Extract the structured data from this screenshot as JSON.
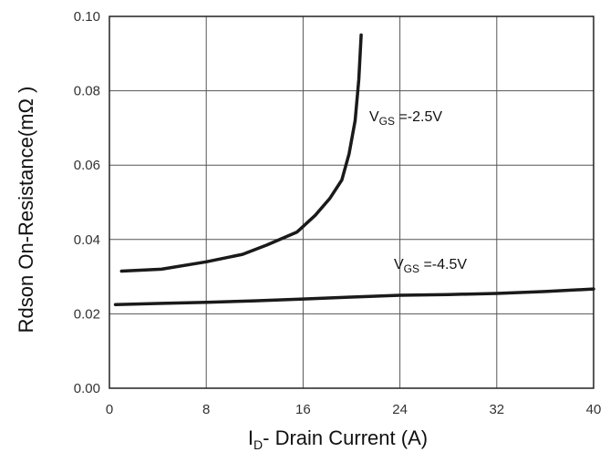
{
  "chart_data": {
    "type": "line",
    "title": "",
    "xlabel_prefix": "I",
    "xlabel_sub": "D",
    "xlabel_rest": "- Drain Current (A)",
    "ylabel": "Rdson On-Resistance(mΩ )",
    "xlim": [
      0,
      40
    ],
    "ylim": [
      0,
      0.1
    ],
    "x_ticks": [
      "0",
      "8",
      "16",
      "24",
      "32",
      "40"
    ],
    "y_ticks": [
      "0.00",
      "0.02",
      "0.04",
      "0.06",
      "0.08",
      "0.10"
    ],
    "x_tick_values": [
      0,
      8,
      16,
      24,
      32,
      40
    ],
    "y_tick_values": [
      0,
      0.02,
      0.04,
      0.06,
      0.08,
      0.1
    ],
    "grid": true,
    "series": [
      {
        "label_prefix": "V",
        "label_sub": "GS",
        "label_rest": " =-2.5V",
        "x": [
          1,
          4.3,
          8,
          11,
          13,
          15.5,
          17,
          18.2,
          19.2,
          19.8,
          20.3,
          20.6,
          20.8
        ],
        "y": [
          0.0315,
          0.032,
          0.034,
          0.036,
          0.0385,
          0.042,
          0.0465,
          0.051,
          0.056,
          0.063,
          0.072,
          0.083,
          0.095
        ]
      },
      {
        "label_prefix": "V",
        "label_sub": "GS",
        "label_rest": " =-4.5V",
        "x": [
          0.5,
          4,
          8,
          12,
          16,
          20,
          24,
          28,
          32,
          36,
          40
        ],
        "y": [
          0.0225,
          0.0228,
          0.0231,
          0.0235,
          0.024,
          0.0245,
          0.025,
          0.0252,
          0.0255,
          0.026,
          0.0267
        ]
      }
    ]
  }
}
